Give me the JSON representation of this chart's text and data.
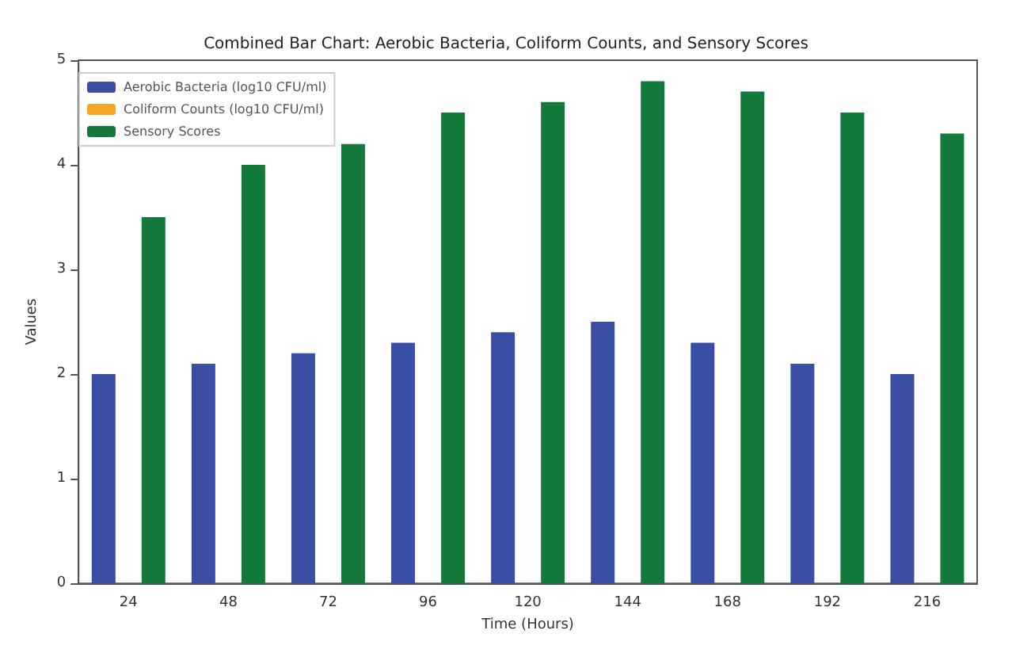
{
  "chart_data": {
    "type": "bar",
    "title": "Combined Bar Chart: Aerobic Bacteria, Coliform Counts, and Sensory Scores",
    "xlabel": "Time (Hours)",
    "ylabel": "Values",
    "categories": [
      "24",
      "48",
      "72",
      "96",
      "120",
      "144",
      "168",
      "192",
      "216"
    ],
    "series": [
      {
        "name": "Aerobic Bacteria (log10 CFU/ml)",
        "color": "#3a4fa3",
        "values": [
          2.0,
          2.1,
          2.2,
          2.3,
          2.4,
          2.5,
          2.3,
          2.1,
          2.0
        ]
      },
      {
        "name": "Coliform Counts (log10 CFU/ml)",
        "color": "#f5a623",
        "values": [
          null,
          null,
          null,
          null,
          null,
          null,
          null,
          null,
          null
        ]
      },
      {
        "name": "Sensory Scores",
        "color": "#137a3c",
        "values": [
          3.5,
          4.0,
          4.2,
          4.5,
          4.6,
          4.8,
          4.7,
          4.5,
          4.3
        ]
      }
    ],
    "ylim": [
      0,
      5
    ],
    "yticks": [
      0,
      1,
      2,
      3,
      4,
      5
    ],
    "legend": "top left"
  }
}
